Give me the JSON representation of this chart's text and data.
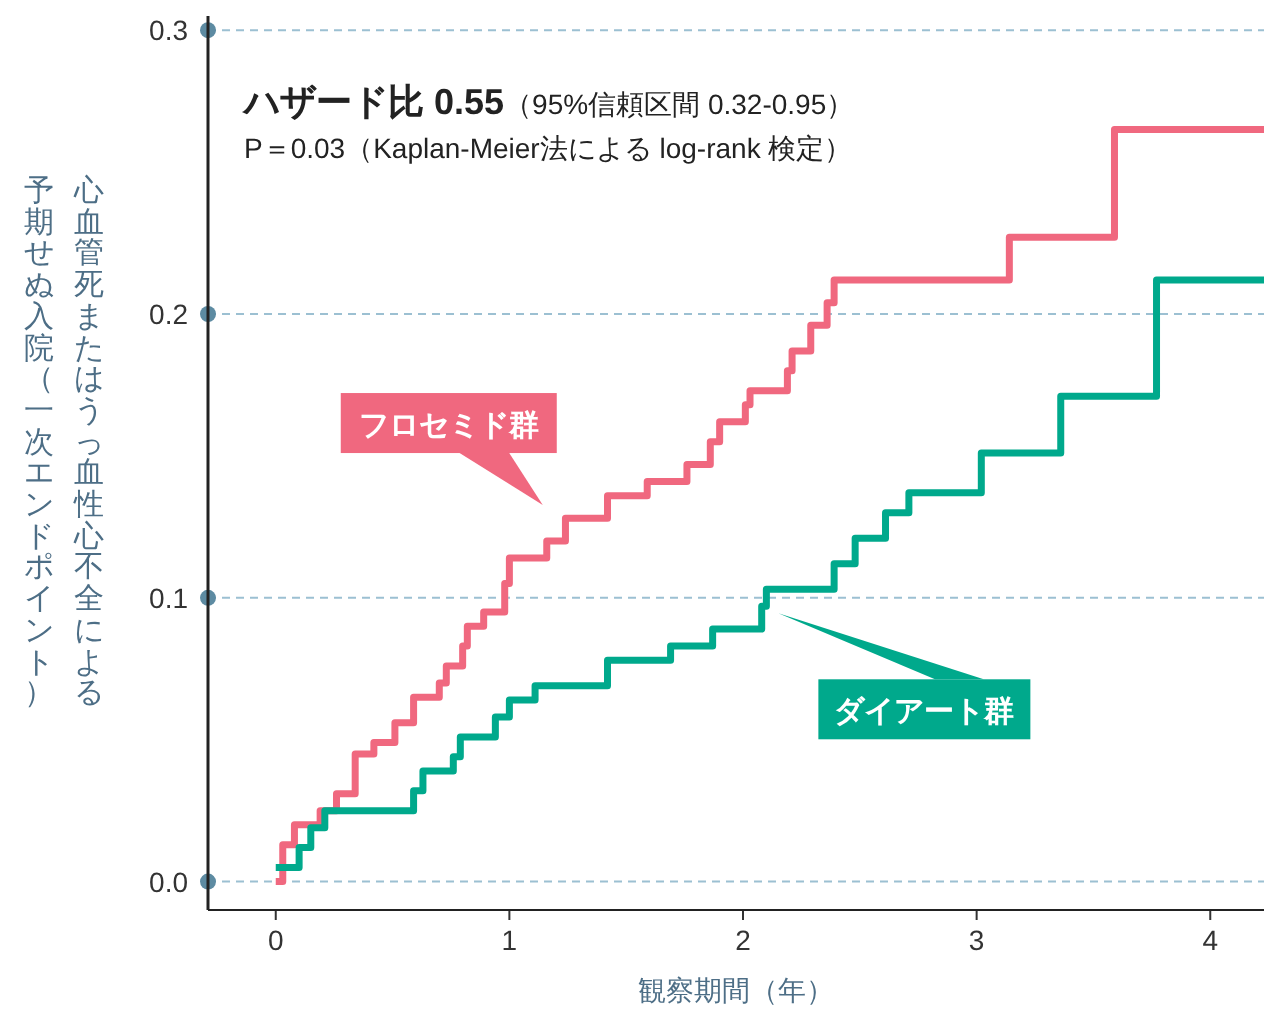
{
  "chart_data": {
    "type": "step",
    "xlabel": "観察期間（年）",
    "ylabel": "心血管死またはうっ血性心不全による予期せぬ入院（一次エンドポイント）",
    "xlim": [
      -0.29,
      4.23
    ],
    "ylim": [
      -0.01,
      0.305
    ],
    "xticks": [
      0,
      1,
      2,
      3,
      4
    ],
    "yticks": [
      {
        "value": 0,
        "label": "0.0"
      },
      0.1,
      0.2,
      0.3
    ],
    "grid": "y",
    "legend": false,
    "line_style": "solid",
    "marker": "none",
    "annotations": [
      "ハザード比 0.55",
      "（95%信頼区間 0.32-0.95）",
      "P＝0.03（Kaplan-Meier法による log-rank 検定）"
    ],
    "series": [
      {
        "name": "フロセミド群",
        "color": "#f0687f",
        "x": [
          0,
          0.03,
          0.08,
          0.19,
          0.26,
          0.34,
          0.42,
          0.51,
          0.59,
          0.7,
          0.73,
          0.8,
          0.82,
          0.89,
          0.98,
          1.0,
          1.16,
          1.24,
          1.42,
          1.59,
          1.76,
          1.86,
          1.9,
          2.01,
          2.03,
          2.19,
          2.21,
          2.29,
          2.36,
          2.39,
          3.14,
          3.59,
          4.23
        ],
        "values": [
          0,
          0.013,
          0.02,
          0.025,
          0.031,
          0.045,
          0.049,
          0.056,
          0.065,
          0.07,
          0.076,
          0.083,
          0.09,
          0.095,
          0.105,
          0.114,
          0.12,
          0.128,
          0.136,
          0.141,
          0.147,
          0.155,
          0.162,
          0.168,
          0.173,
          0.18,
          0.187,
          0.196,
          0.204,
          0.212,
          0.227,
          0.265,
          0.265
        ]
      },
      {
        "name": "ダイアート群",
        "color": "#00a98c",
        "x": [
          0,
          0.1,
          0.15,
          0.21,
          0.59,
          0.63,
          0.76,
          0.79,
          0.94,
          1.0,
          1.11,
          1.42,
          1.69,
          1.87,
          2.08,
          2.1,
          2.39,
          2.48,
          2.61,
          2.71,
          3.02,
          3.36,
          3.77,
          4.23
        ],
        "values": [
          0.005,
          0.012,
          0.019,
          0.025,
          0.032,
          0.039,
          0.044,
          0.051,
          0.058,
          0.064,
          0.069,
          0.078,
          0.083,
          0.089,
          0.097,
          0.103,
          0.112,
          0.121,
          0.13,
          0.137,
          0.151,
          0.171,
          0.212,
          0.212
        ]
      }
    ]
  }
}
